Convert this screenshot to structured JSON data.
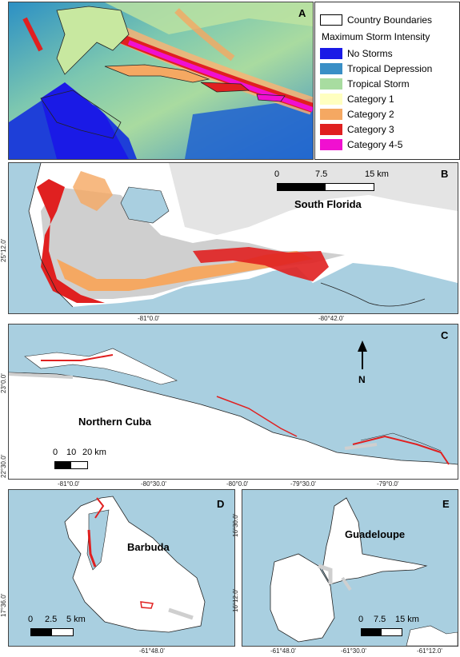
{
  "legend": {
    "boundary_label": "Country Boundaries",
    "heading": "Maximum Storm Intensity",
    "items": [
      {
        "label": "No Storms",
        "color": "#1a1ae6"
      },
      {
        "label": "Tropical Depression",
        "color": "#3a8fc6"
      },
      {
        "label": "Tropical Storm",
        "color": "#a8dca0"
      },
      {
        "label": "Category 1",
        "color": "#ffffc0"
      },
      {
        "label": "Category 2",
        "color": "#f5a862"
      },
      {
        "label": "Category 3",
        "color": "#e02020"
      },
      {
        "label": "Category 4-5",
        "color": "#f010d0"
      }
    ]
  },
  "panels": {
    "a": {
      "letter": "A"
    },
    "b": {
      "letter": "B",
      "place": "South Florida",
      "scale": {
        "labels": [
          "0",
          "7.5",
          "15 km"
        ]
      },
      "ticks_x": [
        "-81°0.0'",
        "-80°42.0'"
      ],
      "ticks_y": [
        "25°12.0'"
      ]
    },
    "c": {
      "letter": "C",
      "place": "Northern Cuba",
      "north": "N",
      "scale": {
        "labels": [
          "0",
          "10",
          "20 km"
        ]
      },
      "ticks_x": [
        "-81°0.0'",
        "-80°30.0'",
        "-80°0.0'",
        "-79°30.0'",
        "-79°0.0'"
      ],
      "ticks_y": [
        "23°0.0'",
        "22°30.0'"
      ]
    },
    "d": {
      "letter": "D",
      "place": "Barbuda",
      "scale": {
        "labels": [
          "0",
          "2.5",
          "5 km"
        ]
      },
      "ticks_x": [
        "-61°48.0'"
      ],
      "ticks_y": [
        "17°36.0'"
      ]
    },
    "e": {
      "letter": "E",
      "place": "Guadeloupe",
      "scale": {
        "labels": [
          "0",
          "7.5",
          "15 km"
        ]
      },
      "ticks_x": [
        "-61°48.0'",
        "-61°30.0'",
        "-61°12.0'"
      ],
      "ticks_y": [
        "16°30.0'",
        "16°12.0'"
      ]
    }
  }
}
